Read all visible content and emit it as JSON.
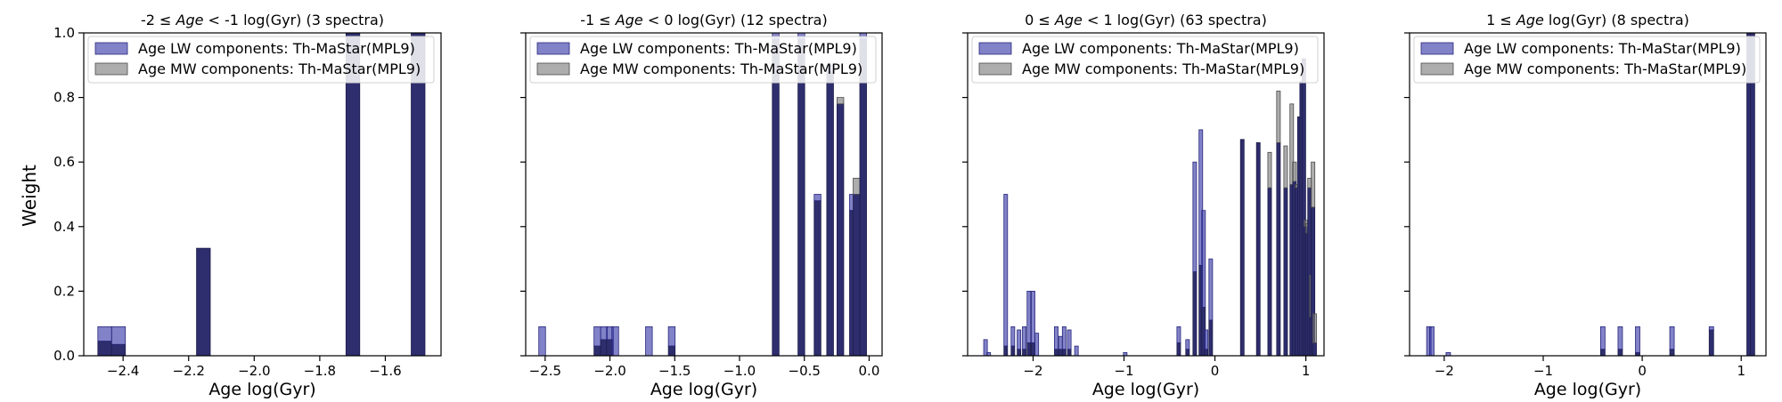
{
  "figure": {
    "ylabel": "Weight"
  },
  "colors": {
    "lw": "#3636a8",
    "mw": "#7a7a7a",
    "overlap": "#2e2e6e"
  },
  "chart_data": [
    {
      "type": "bar",
      "title_pre": "-2 ≤ ",
      "title_age": "Age",
      "title_post": " < -1 log(Gyr) (3 spectra)",
      "xlabel": "Age log(Gyr)",
      "ylabel": "Weight",
      "xlim": [
        -2.52,
        -1.43
      ],
      "ylim": [
        0,
        1.0
      ],
      "xticks": [
        -2.4,
        -2.2,
        -2.0,
        -1.8,
        -1.6
      ],
      "xtick_labels": [
        "−2.4",
        "−2.2",
        "−2.0",
        "−1.8",
        "−1.6"
      ],
      "yticks": [
        0.0,
        0.2,
        0.4,
        0.6,
        0.8,
        1.0
      ],
      "ytick_labels": [
        "0.0",
        "0.2",
        "0.4",
        "0.6",
        "0.8",
        "1.0"
      ],
      "show_yticklabels": true,
      "legend": {
        "position": "top-left",
        "entries": [
          "Age LW components: Th-MaStar(MPL9)",
          "Age MW components: Th-MaStar(MPL9)"
        ]
      },
      "bar_width": 0.042,
      "series": [
        {
          "name": "Age LW components: Th-MaStar(MPL9)",
          "x": [
            -2.456,
            -2.414,
            -2.155,
            -1.699,
            -1.5
          ],
          "y": [
            0.09,
            0.09,
            0.333,
            1.0,
            1.0
          ]
        },
        {
          "name": "Age MW components: Th-MaStar(MPL9)",
          "x": [
            -2.456,
            -2.414,
            -2.155,
            -1.699,
            -1.5
          ],
          "y": [
            0.045,
            0.035,
            0.333,
            1.0,
            1.0
          ]
        }
      ]
    },
    {
      "type": "bar",
      "title_pre": "-1 ≤ ",
      "title_age": "Age",
      "title_post": " < 0 log(Gyr) (12 spectra)",
      "xlabel": "Age log(Gyr)",
      "ylabel": "",
      "xlim": [
        -2.65,
        0.1
      ],
      "ylim": [
        0,
        1.0
      ],
      "xticks": [
        -2.5,
        -2.0,
        -1.5,
        -1.0,
        -0.5,
        0.0
      ],
      "xtick_labels": [
        "−2.5",
        "−2.0",
        "−1.5",
        "−1.0",
        "−0.5",
        "0.0"
      ],
      "yticks": [
        0.0,
        0.2,
        0.4,
        0.6,
        0.8,
        1.0
      ],
      "ytick_labels": [],
      "show_yticklabels": false,
      "legend": {
        "position": "top-left",
        "entries": [
          "Age LW components: Th-MaStar(MPL9)",
          "Age MW components: Th-MaStar(MPL9)"
        ]
      },
      "bar_width": 0.052,
      "series": [
        {
          "name": "Age LW components: Th-MaStar(MPL9)",
          "x": [
            -2.523,
            -2.097,
            -2.046,
            -2.0,
            -1.959,
            -1.699,
            -1.523,
            -0.721,
            -0.523,
            -0.398,
            -0.301,
            -0.222,
            -0.125,
            -0.097,
            -0.046
          ],
          "y": [
            0.09,
            0.09,
            0.09,
            0.09,
            0.09,
            0.09,
            0.09,
            1.0,
            1.0,
            0.5,
            0.9,
            0.78,
            0.5,
            0.5,
            1.0
          ]
        },
        {
          "name": "Age MW components: Th-MaStar(MPL9)",
          "x": [
            -2.523,
            -2.097,
            -2.046,
            -2.0,
            -1.959,
            -1.699,
            -1.523,
            -0.721,
            -0.523,
            -0.398,
            -0.301,
            -0.222,
            -0.125,
            -0.097,
            -0.046
          ],
          "y": [
            0.0,
            0.03,
            0.05,
            0.05,
            0.0,
            0.0,
            0.03,
            0.98,
            0.98,
            0.48,
            0.88,
            0.8,
            0.45,
            0.55,
            0.98
          ]
        }
      ]
    },
    {
      "type": "bar",
      "title_pre": "0 ≤ ",
      "title_age": "Age",
      "title_post": " < 1 log(Gyr) (63 spectra)",
      "xlabel": "Age log(Gyr)",
      "ylabel": "",
      "xlim": [
        -2.72,
        1.2
      ],
      "ylim": [
        0,
        1.0
      ],
      "xticks": [
        -2.0,
        -1.0,
        0.0,
        1.0
      ],
      "xtick_labels": [
        "−2",
        "−1",
        "0",
        "1"
      ],
      "yticks": [
        0.0,
        0.2,
        0.4,
        0.6,
        0.8,
        1.0
      ],
      "ytick_labels": [],
      "show_yticklabels": false,
      "legend": {
        "position": "top-left",
        "entries": [
          "Age LW components: Th-MaStar(MPL9)",
          "Age MW components: Th-MaStar(MPL9)"
        ]
      },
      "bar_width": 0.04,
      "series": [
        {
          "name": "Age LW components: Th-MaStar(MPL9)",
          "x": [
            -2.523,
            -2.488,
            -2.301,
            -2.222,
            -2.155,
            -2.097,
            -2.046,
            -2.0,
            -1.959,
            -1.745,
            -1.699,
            -1.658,
            -1.602,
            -1.523,
            -0.987,
            -0.398,
            -0.301,
            -0.222,
            -0.155,
            -0.125,
            -0.097,
            -0.046,
            0.301,
            0.477,
            0.602,
            0.699,
            0.778,
            0.845,
            0.875,
            0.903,
            0.929,
            0.954,
            0.978,
            1.0,
            1.02,
            1.041,
            1.061,
            1.079,
            1.097
          ],
          "y": [
            0.05,
            0.01,
            0.5,
            0.09,
            0.08,
            0.09,
            0.2,
            0.2,
            0.07,
            0.09,
            0.06,
            0.09,
            0.08,
            0.03,
            0.01,
            0.09,
            0.05,
            0.6,
            0.7,
            0.45,
            0.08,
            0.3,
            0.67,
            0.66,
            0.52,
            0.66,
            0.52,
            0.53,
            0.54,
            0.52,
            0.74,
            0.85,
            0.92,
            0.4,
            0.38,
            0.52,
            0.12,
            0.46,
            0.04
          ]
        },
        {
          "name": "Age MW components: Th-MaStar(MPL9)",
          "x": [
            -2.523,
            -2.488,
            -2.301,
            -2.222,
            -2.155,
            -2.097,
            -2.046,
            -2.0,
            -1.959,
            -1.745,
            -1.699,
            -1.658,
            -1.602,
            -1.523,
            -0.987,
            -0.398,
            -0.301,
            -0.222,
            -0.155,
            -0.125,
            -0.097,
            -0.046,
            0.301,
            0.477,
            0.602,
            0.699,
            0.778,
            0.845,
            0.875,
            0.903,
            0.929,
            0.954,
            0.978,
            1.0,
            1.02,
            1.041,
            1.061,
            1.079,
            1.097
          ],
          "y": [
            0.0,
            0.0,
            0.03,
            0.03,
            0.02,
            0.02,
            0.04,
            0.04,
            0.0,
            0.02,
            0.02,
            0.02,
            0.02,
            0.0,
            0.0,
            0.04,
            0.02,
            0.26,
            0.28,
            0.15,
            0.02,
            0.11,
            0.67,
            0.66,
            0.63,
            0.82,
            0.65,
            0.78,
            0.6,
            0.53,
            0.74,
            0.85,
            0.92,
            0.42,
            0.41,
            0.55,
            0.25,
            0.6,
            0.13
          ]
        }
      ]
    },
    {
      "type": "bar",
      "title_pre": "1 ≤ ",
      "title_age": "Age",
      "title_post": " log(Gyr) (8 spectra)",
      "xlabel": "Age log(Gyr)",
      "ylabel": "",
      "xlim": [
        -2.35,
        1.25
      ],
      "ylim": [
        0,
        1.0
      ],
      "xticks": [
        -2.0,
        -1.0,
        0.0,
        1.0
      ],
      "xtick_labels": [
        "−2",
        "−1",
        "0",
        "1"
      ],
      "yticks": [
        0.0,
        0.2,
        0.4,
        0.6,
        0.8,
        1.0
      ],
      "ytick_labels": [],
      "show_yticklabels": false,
      "legend": {
        "position": "top-left",
        "entries": [
          "Age LW components: Th-MaStar(MPL9)",
          "Age MW components: Th-MaStar(MPL9)"
        ]
      },
      "bar_width": 0.045,
      "series": [
        {
          "name": "Age LW components: Th-MaStar(MPL9)",
          "x": [
            -2.155,
            -2.125,
            -1.959,
            -0.398,
            -0.222,
            -0.046,
            0.301,
            0.699,
            1.079,
            1.114
          ],
          "y": [
            0.09,
            0.09,
            0.01,
            0.09,
            0.09,
            0.09,
            0.09,
            0.09,
            1.0,
            1.0
          ]
        },
        {
          "name": "Age MW components: Th-MaStar(MPL9)",
          "x": [
            -2.155,
            -2.125,
            -1.959,
            -0.398,
            -0.222,
            -0.046,
            0.301,
            0.699,
            1.079,
            1.114
          ],
          "y": [
            0.0,
            0.0,
            0.0,
            0.02,
            0.02,
            0.01,
            0.02,
            0.08,
            1.0,
            1.0
          ]
        }
      ]
    }
  ]
}
